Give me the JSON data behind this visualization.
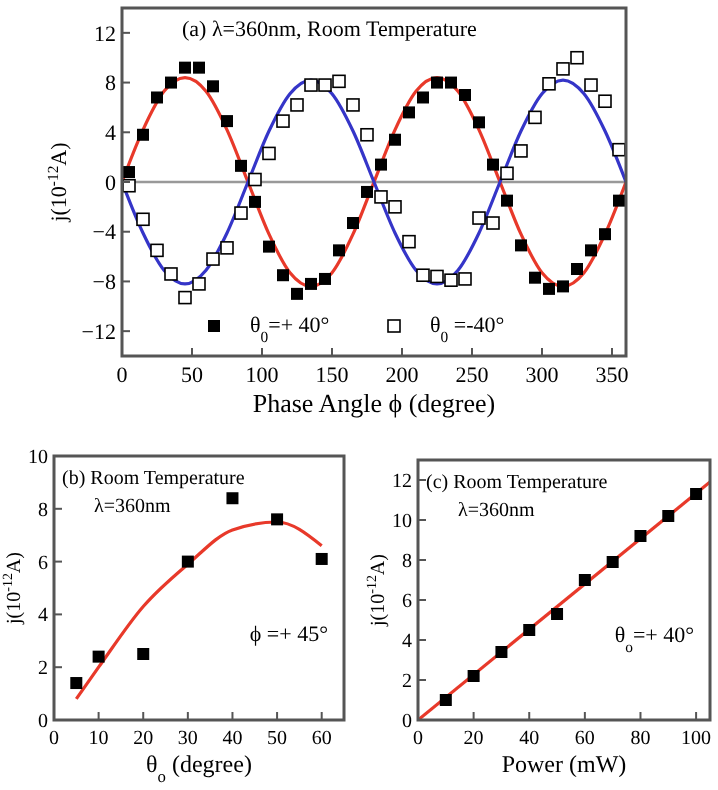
{
  "chart_data": [
    {
      "type": "scatter",
      "title": "(a) λ=360nm,  Room Temperature",
      "xlabel": "Phase Angle ϕ (degree)",
      "ylabel": "j(10$^{-12}$A)",
      "xlim": [
        0,
        360
      ],
      "xticks": [
        0,
        50,
        100,
        150,
        200,
        250,
        300,
        350
      ],
      "ylim": [
        -14,
        14
      ],
      "yticks": [
        -12,
        -8,
        -4,
        0,
        4,
        8,
        12
      ],
      "legend": "bottom",
      "grid": false,
      "ref_lines": [
        {
          "axis": "y",
          "value": 0,
          "color": "#999999"
        }
      ],
      "series": [
        {
          "name": "θ$_{0}$=+ 40°",
          "marker": "square",
          "color": "#000000",
          "x": [
            5,
            15,
            25,
            35,
            45,
            55,
            65,
            75,
            85,
            95,
            105,
            115,
            125,
            135,
            145,
            155,
            165,
            175,
            185,
            195,
            205,
            215,
            225,
            235,
            245,
            255,
            265,
            275,
            285,
            295,
            305,
            315,
            325,
            335,
            345,
            355
          ],
          "values": [
            0.8,
            3.8,
            6.8,
            8.0,
            9.2,
            9.2,
            7.7,
            4.9,
            1.3,
            -1.6,
            -5.2,
            -7.5,
            -9.0,
            -8.2,
            -7.8,
            -5.5,
            -3.3,
            -0.8,
            1.4,
            3.4,
            5.6,
            6.8,
            8.0,
            8.0,
            7.0,
            4.8,
            1.4,
            -1.5,
            -5.1,
            -7.7,
            -8.6,
            -8.4,
            -7.0,
            -5.5,
            -4.2,
            -1.5
          ]
        },
        {
          "name": "θ$_{0}$ =-40°",
          "marker": "square",
          "color": "#000000",
          "x": [
            5,
            15,
            25,
            35,
            45,
            55,
            65,
            75,
            85,
            95,
            105,
            115,
            125,
            135,
            145,
            155,
            165,
            175,
            185,
            195,
            205,
            215,
            225,
            235,
            245,
            255,
            265,
            275,
            285,
            295,
            305,
            315,
            325,
            335,
            345,
            355
          ],
          "values": [
            -0.3,
            -3.0,
            -5.5,
            -7.4,
            -9.3,
            -8.2,
            -6.2,
            -5.3,
            -2.5,
            0.2,
            2.3,
            4.9,
            6.2,
            7.8,
            7.8,
            8.1,
            6.2,
            3.8,
            -1.2,
            -2.0,
            -4.8,
            -7.5,
            -7.6,
            -7.9,
            -7.8,
            -2.9,
            -3.3,
            0.7,
            2.5,
            5.2,
            7.9,
            9.1,
            10.0,
            7.8,
            6.5,
            2.6
          ]
        },
        {
          "type": "line",
          "marker": "none",
          "color": "#e8392a",
          "x": [
            0,
            15,
            30,
            45,
            60,
            75,
            90,
            105,
            120,
            135,
            150,
            165,
            180,
            195,
            210,
            225,
            240,
            255,
            270,
            285,
            300,
            315,
            330,
            345,
            360
          ],
          "values": [
            0,
            4.2,
            7.3,
            8.4,
            7.3,
            4.2,
            0,
            -4.2,
            -7.3,
            -8.4,
            -7.3,
            -4.2,
            0,
            4.2,
            7.3,
            8.4,
            7.3,
            4.2,
            0,
            -4.2,
            -7.3,
            -8.4,
            -7.3,
            -4.2,
            0
          ]
        },
        {
          "type": "line",
          "marker": "none",
          "color": "#3535c8",
          "x": [
            0,
            15,
            30,
            45,
            60,
            75,
            90,
            105,
            120,
            135,
            150,
            165,
            180,
            195,
            210,
            225,
            240,
            255,
            270,
            285,
            300,
            315,
            330,
            345,
            360
          ],
          "values": [
            0,
            -4.1,
            -7.1,
            -8.2,
            -7.1,
            -4.1,
            0,
            4.1,
            7.1,
            8.2,
            7.1,
            4.1,
            0,
            -4.1,
            -7.1,
            -8.2,
            -7.1,
            -4.1,
            0,
            4.1,
            7.1,
            8.2,
            7.1,
            4.1,
            0
          ]
        }
      ]
    },
    {
      "type": "scatter",
      "title": "(b) Room Temperature",
      "subtitle": "λ=360nm",
      "annotations": [
        "ϕ =+ 45°"
      ],
      "xlabel": "θ$_{o}$ (degree)",
      "ylabel": "j(10$^{-12}$A)",
      "xlim": [
        0,
        65
      ],
      "xticks": [
        0,
        10,
        20,
        30,
        40,
        50,
        60
      ],
      "ylim": [
        0,
        10
      ],
      "yticks": [
        0,
        2,
        4,
        6,
        8,
        10
      ],
      "grid": false,
      "series": [
        {
          "marker": "square",
          "color": "#000000",
          "x": [
            5,
            10,
            20,
            30,
            40,
            50,
            60
          ],
          "values": [
            1.4,
            2.4,
            2.5,
            6.0,
            8.4,
            7.6,
            6.1
          ]
        },
        {
          "type": "line",
          "marker": "none",
          "color": "#e8392a",
          "x": [
            5,
            10,
            20,
            30,
            40,
            50,
            60
          ],
          "values": [
            0.8,
            2.0,
            4.3,
            5.9,
            7.2,
            7.5,
            6.6
          ]
        }
      ]
    },
    {
      "type": "scatter",
      "title": "(c) Room Temperature",
      "subtitle": "λ=360nm",
      "annotations": [
        "θ$_{o}$=+ 40°"
      ],
      "xlabel": "Power (mW)",
      "ylabel": "j(10$^{-12}$A)",
      "xlim": [
        0,
        105
      ],
      "xticks": [
        0,
        20,
        40,
        60,
        80,
        100
      ],
      "ylim": [
        0,
        13
      ],
      "yticks": [
        0,
        2,
        4,
        6,
        8,
        10,
        12
      ],
      "grid": false,
      "series": [
        {
          "marker": "square",
          "color": "#000000",
          "x": [
            10,
            20,
            30,
            40,
            50,
            60,
            70,
            80,
            90,
            100
          ],
          "values": [
            1.0,
            2.2,
            3.4,
            4.5,
            5.3,
            7.0,
            7.9,
            9.2,
            10.2,
            11.3
          ]
        },
        {
          "type": "line",
          "marker": "none",
          "color": "#e8392a",
          "x": [
            0,
            105
          ],
          "values": [
            0,
            11.9
          ]
        }
      ]
    }
  ]
}
